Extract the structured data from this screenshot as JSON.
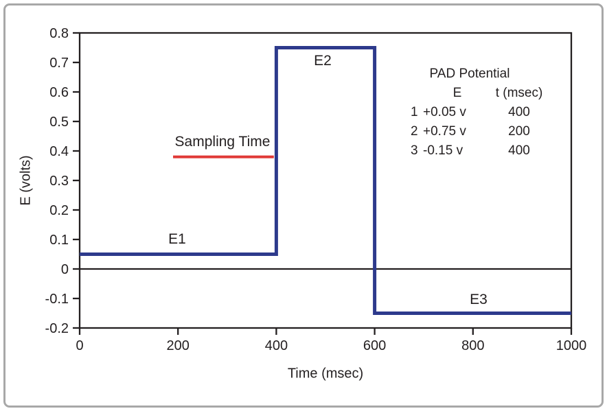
{
  "figure": {
    "background": "#ffffff",
    "border_color": "#a8a8a8"
  },
  "chart_data": {
    "type": "line",
    "title": "",
    "xlabel": "Time (msec)",
    "ylabel": "E (volts)",
    "xlim": [
      0,
      1000
    ],
    "ylim": [
      -0.2,
      0.8
    ],
    "grid": false,
    "axis_color": "#231f20",
    "x_ticks": [
      {
        "value": 0,
        "label": "0"
      },
      {
        "value": 200,
        "label": "200"
      },
      {
        "value": 400,
        "label": "400"
      },
      {
        "value": 600,
        "label": "600"
      },
      {
        "value": 800,
        "label": "800"
      },
      {
        "value": 1000,
        "label": "1000"
      }
    ],
    "y_ticks": [
      {
        "value": 0.8,
        "label": "0.8"
      },
      {
        "value": 0.7,
        "label": "0.7"
      },
      {
        "value": 0.6,
        "label": "0.6"
      },
      {
        "value": 0.5,
        "label": "0.5"
      },
      {
        "value": 0.4,
        "label": "0.4"
      },
      {
        "value": 0.3,
        "label": "0.3"
      },
      {
        "value": 0.2,
        "label": "0.2"
      },
      {
        "value": 0.1,
        "label": "0.1"
      },
      {
        "value": 0,
        "label": "0"
      },
      {
        "value": -0.1,
        "label": "-0.1"
      },
      {
        "value": -0.2,
        "label": "-0.2"
      }
    ],
    "zero_line": true,
    "series": [
      {
        "name": "pad-potential-waveform",
        "color": "#2d3a8c",
        "width": 5,
        "points": [
          [
            0,
            0.05
          ],
          [
            400,
            0.05
          ],
          [
            400,
            0.75
          ],
          [
            600,
            0.75
          ],
          [
            600,
            -0.15
          ],
          [
            1000,
            -0.15
          ]
        ]
      },
      {
        "name": "sampling-time-line",
        "color": "#e03936",
        "width": 4,
        "points": [
          [
            190,
            0.38
          ],
          [
            395,
            0.38
          ]
        ]
      }
    ],
    "annotations": [
      {
        "text": "E1",
        "x": 198,
        "y": 0.1
      },
      {
        "text": "E2",
        "x": 495,
        "y": 0.71
      },
      {
        "text": "E3",
        "x": 811,
        "y": -0.1
      },
      {
        "text": "Sampling Time",
        "x": 290,
        "y": 0.43
      }
    ]
  },
  "legend_box": {
    "title": "PAD Potential",
    "col_e_header": "E",
    "col_t_header": "t (msec)",
    "rows": [
      {
        "step": "1",
        "e": "+0.05 v",
        "t": "400"
      },
      {
        "step": "2",
        "e": "+0.75 v",
        "t": "200"
      },
      {
        "step": "3",
        "e": "-0.15 v",
        "t": "400"
      }
    ]
  }
}
